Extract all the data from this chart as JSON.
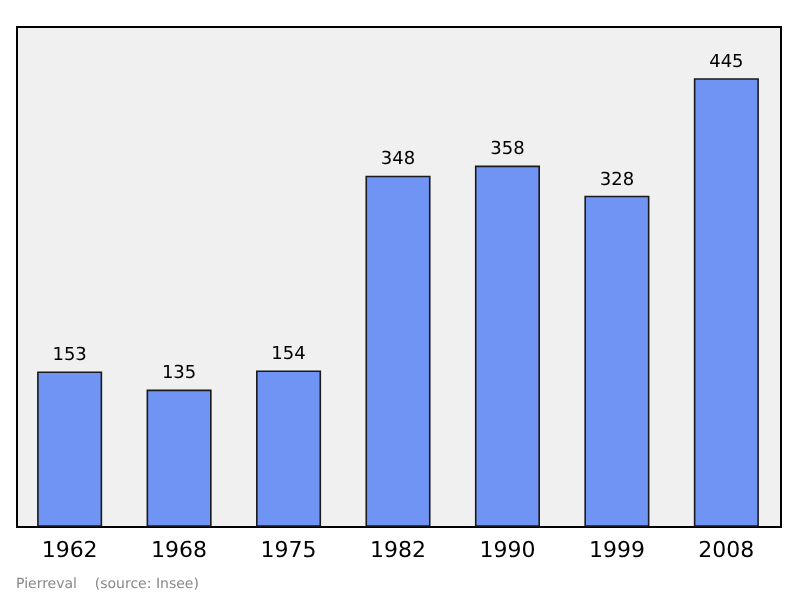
{
  "chart_data": {
    "type": "bar",
    "categories": [
      "1962",
      "1968",
      "1975",
      "1982",
      "1990",
      "1999",
      "2008"
    ],
    "values": [
      153,
      135,
      154,
      348,
      358,
      328,
      445
    ],
    "color": "#7094f4",
    "data_labels": true,
    "annotations": [
      "Pierreval    (source: Insee)"
    ]
  }
}
